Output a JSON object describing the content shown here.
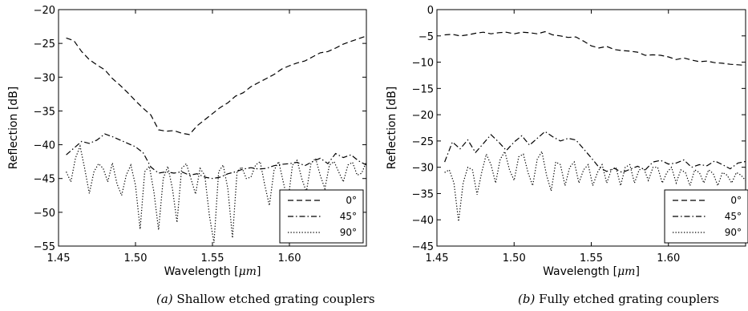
{
  "chart_data": [
    {
      "type": "line",
      "caption_prefix": "(a)",
      "caption_text": "Shallow etched grating couplers",
      "xlabel_prefix": "Wavelength [",
      "xlabel_unit": "μm",
      "xlabel_suffix": "]",
      "ylabel": "Reflection [dB]",
      "xlim": [
        1.45,
        1.65
      ],
      "ylim": [
        -55,
        -20
      ],
      "xticks": [
        "1.45",
        "1.50",
        "1.55",
        "1.60"
      ],
      "xtick_values": [
        1.45,
        1.5,
        1.55,
        1.6
      ],
      "yticks": [
        "−55",
        "−50",
        "−45",
        "−40",
        "−35",
        "−30",
        "−25",
        "−20"
      ],
      "ytick_values": [
        -55,
        -50,
        -45,
        -40,
        -35,
        -30,
        -25,
        -20
      ],
      "grid": false,
      "legend_position": "lower-right",
      "series": [
        {
          "name": "0°",
          "style": "dashed",
          "x": [
            1.455,
            1.46,
            1.465,
            1.47,
            1.475,
            1.48,
            1.485,
            1.49,
            1.495,
            1.5,
            1.505,
            1.51,
            1.515,
            1.52,
            1.525,
            1.53,
            1.535,
            1.54,
            1.545,
            1.55,
            1.555,
            1.56,
            1.565,
            1.57,
            1.575,
            1.58,
            1.585,
            1.59,
            1.595,
            1.6,
            1.605,
            1.61,
            1.615,
            1.62,
            1.625,
            1.63,
            1.635,
            1.64,
            1.645,
            1.65
          ],
          "y": [
            -24.2,
            -24.6,
            -26.2,
            -27.4,
            -28.2,
            -28.9,
            -30.2,
            -31.2,
            -32.3,
            -33.5,
            -34.6,
            -35.6,
            -37.8,
            -38.0,
            -37.9,
            -38.3,
            -38.5,
            -37.2,
            -36.3,
            -35.4,
            -34.5,
            -33.8,
            -32.8,
            -32.3,
            -31.4,
            -30.8,
            -30.2,
            -29.6,
            -28.8,
            -28.3,
            -27.9,
            -27.6,
            -27.0,
            -26.4,
            -26.2,
            -25.7,
            -25.1,
            -24.7,
            -24.3,
            -23.9
          ]
        },
        {
          "name": "45°",
          "style": "dashdot",
          "x": [
            1.455,
            1.46,
            1.465,
            1.47,
            1.475,
            1.48,
            1.485,
            1.49,
            1.495,
            1.5,
            1.505,
            1.51,
            1.515,
            1.52,
            1.525,
            1.53,
            1.535,
            1.54,
            1.545,
            1.55,
            1.555,
            1.56,
            1.565,
            1.57,
            1.575,
            1.58,
            1.585,
            1.59,
            1.595,
            1.6,
            1.605,
            1.61,
            1.615,
            1.62,
            1.625,
            1.63,
            1.635,
            1.64,
            1.645,
            1.65
          ],
          "y": [
            -41.5,
            -40.5,
            -39.5,
            -39.8,
            -39.3,
            -38.4,
            -38.8,
            -39.3,
            -39.8,
            -40.3,
            -41.2,
            -43.3,
            -44.2,
            -44.0,
            -44.2,
            -44.0,
            -44.5,
            -44.3,
            -44.8,
            -45.0,
            -44.8,
            -44.3,
            -44.0,
            -43.6,
            -43.4,
            -43.6,
            -43.5,
            -43.1,
            -42.9,
            -42.8,
            -42.6,
            -43.1,
            -42.5,
            -42.0,
            -42.8,
            -41.3,
            -41.9,
            -41.5,
            -42.4,
            -43.0
          ]
        },
        {
          "name": "90°",
          "style": "dotted",
          "x": [
            1.455,
            1.458,
            1.461,
            1.464,
            1.467,
            1.47,
            1.473,
            1.476,
            1.479,
            1.482,
            1.485,
            1.488,
            1.491,
            1.494,
            1.497,
            1.5,
            1.503,
            1.506,
            1.509,
            1.512,
            1.515,
            1.518,
            1.521,
            1.524,
            1.527,
            1.53,
            1.533,
            1.536,
            1.539,
            1.542,
            1.545,
            1.548,
            1.551,
            1.554,
            1.557,
            1.56,
            1.563,
            1.566,
            1.569,
            1.572,
            1.575,
            1.578,
            1.581,
            1.584,
            1.587,
            1.59,
            1.593,
            1.596,
            1.599,
            1.602,
            1.605,
            1.608,
            1.611,
            1.614,
            1.617,
            1.62,
            1.623,
            1.626,
            1.629,
            1.632,
            1.635,
            1.638,
            1.641,
            1.644,
            1.647,
            1.65
          ],
          "y": [
            -44.0,
            -45.5,
            -42.0,
            -40.2,
            -43.5,
            -47.2,
            -44.0,
            -42.8,
            -43.5,
            -45.5,
            -42.7,
            -45.8,
            -47.5,
            -44.5,
            -43.0,
            -46.0,
            -52.5,
            -44.0,
            -43.2,
            -47.0,
            -52.6,
            -45.0,
            -43.2,
            -46.5,
            -51.5,
            -43.5,
            -42.8,
            -45.0,
            -47.3,
            -43.5,
            -44.5,
            -50.5,
            -54.5,
            -44.0,
            -43.0,
            -46.5,
            -53.8,
            -44.0,
            -43.3,
            -45.0,
            -44.8,
            -43.0,
            -42.5,
            -46.0,
            -49.0,
            -43.8,
            -42.5,
            -45.5,
            -48.5,
            -43.0,
            -42.3,
            -45.0,
            -47.0,
            -42.8,
            -42.0,
            -44.5,
            -46.5,
            -43.0,
            -42.5,
            -44.0,
            -45.5,
            -43.0,
            -42.6,
            -44.5,
            -44.2,
            -42.5
          ]
        }
      ]
    },
    {
      "type": "line",
      "caption_prefix": "(b)",
      "caption_text": "Fully etched grating couplers",
      "xlabel_prefix": "Wavelength [",
      "xlabel_unit": "μm",
      "xlabel_suffix": "]",
      "ylabel": "Reflection [dB]",
      "xlim": [
        1.45,
        1.65
      ],
      "ylim": [
        -45,
        0
      ],
      "xticks": [
        "1.45",
        "1.50",
        "1.55",
        "1.60"
      ],
      "xtick_values": [
        1.45,
        1.5,
        1.55,
        1.6
      ],
      "yticks": [
        "−45",
        "−40",
        "−35",
        "−30",
        "−25",
        "−20",
        "−15",
        "−10",
        "−5",
        "0"
      ],
      "ytick_values": [
        -45,
        -40,
        -35,
        -30,
        -25,
        -20,
        -15,
        -10,
        -5,
        0
      ],
      "grid": false,
      "legend_position": "lower-right",
      "series": [
        {
          "name": "0°",
          "style": "dashed",
          "x": [
            1.455,
            1.46,
            1.465,
            1.47,
            1.475,
            1.48,
            1.485,
            1.49,
            1.495,
            1.5,
            1.505,
            1.51,
            1.515,
            1.52,
            1.525,
            1.53,
            1.535,
            1.54,
            1.545,
            1.55,
            1.555,
            1.56,
            1.565,
            1.57,
            1.575,
            1.58,
            1.585,
            1.59,
            1.595,
            1.6,
            1.605,
            1.61,
            1.615,
            1.62,
            1.625,
            1.63,
            1.635,
            1.64,
            1.645,
            1.65
          ],
          "y": [
            -4.8,
            -4.7,
            -5.0,
            -4.8,
            -4.5,
            -4.3,
            -4.6,
            -4.4,
            -4.3,
            -4.6,
            -4.3,
            -4.4,
            -4.6,
            -4.2,
            -4.8,
            -5.0,
            -5.3,
            -5.2,
            -6.0,
            -6.9,
            -7.3,
            -7.0,
            -7.6,
            -7.8,
            -7.9,
            -8.1,
            -8.7,
            -8.6,
            -8.7,
            -9.0,
            -9.5,
            -9.2,
            -9.6,
            -9.9,
            -9.8,
            -10.1,
            -10.2,
            -10.4,
            -10.5,
            -10.6
          ]
        },
        {
          "name": "45°",
          "style": "dashdot",
          "x": [
            1.455,
            1.46,
            1.465,
            1.47,
            1.475,
            1.48,
            1.485,
            1.49,
            1.495,
            1.5,
            1.505,
            1.51,
            1.515,
            1.52,
            1.525,
            1.53,
            1.535,
            1.54,
            1.545,
            1.55,
            1.555,
            1.56,
            1.565,
            1.57,
            1.575,
            1.58,
            1.585,
            1.59,
            1.595,
            1.6,
            1.605,
            1.61,
            1.615,
            1.62,
            1.625,
            1.63,
            1.635,
            1.64,
            1.645,
            1.65
          ],
          "y": [
            -29.0,
            -25.2,
            -26.5,
            -24.8,
            -27.2,
            -25.5,
            -23.8,
            -25.2,
            -26.8,
            -25.2,
            -24.0,
            -25.8,
            -24.5,
            -23.2,
            -24.2,
            -25.0,
            -24.5,
            -24.8,
            -26.5,
            -28.2,
            -30.0,
            -30.8,
            -30.2,
            -31.0,
            -30.4,
            -29.8,
            -30.5,
            -29.0,
            -28.7,
            -29.4,
            -29.2,
            -28.6,
            -30.0,
            -29.5,
            -29.7,
            -28.8,
            -29.5,
            -30.3,
            -29.2,
            -28.9
          ]
        },
        {
          "name": "90°",
          "style": "dotted",
          "x": [
            1.455,
            1.458,
            1.461,
            1.464,
            1.467,
            1.47,
            1.473,
            1.476,
            1.479,
            1.482,
            1.485,
            1.488,
            1.491,
            1.494,
            1.497,
            1.5,
            1.503,
            1.506,
            1.509,
            1.512,
            1.515,
            1.518,
            1.521,
            1.524,
            1.527,
            1.53,
            1.533,
            1.536,
            1.539,
            1.542,
            1.545,
            1.548,
            1.551,
            1.554,
            1.557,
            1.56,
            1.563,
            1.566,
            1.569,
            1.572,
            1.575,
            1.578,
            1.581,
            1.584,
            1.587,
            1.59,
            1.593,
            1.596,
            1.599,
            1.602,
            1.605,
            1.608,
            1.611,
            1.614,
            1.617,
            1.62,
            1.623,
            1.626,
            1.629,
            1.632,
            1.635,
            1.638,
            1.641,
            1.644,
            1.647,
            1.65
          ],
          "y": [
            -31.0,
            -30.5,
            -33.0,
            -40.3,
            -33.0,
            -30.0,
            -30.5,
            -35.2,
            -31.0,
            -27.5,
            -29.5,
            -33.0,
            -28.5,
            -27.0,
            -30.5,
            -32.5,
            -28.0,
            -27.5,
            -31.0,
            -33.5,
            -28.5,
            -27.0,
            -31.5,
            -34.5,
            -29.0,
            -29.5,
            -33.5,
            -30.0,
            -29.0,
            -33.0,
            -30.5,
            -29.5,
            -33.5,
            -31.0,
            -29.5,
            -33.0,
            -30.5,
            -30.0,
            -33.5,
            -30.0,
            -29.5,
            -33.0,
            -30.5,
            -30.2,
            -32.5,
            -30.0,
            -30.0,
            -33.0,
            -31.0,
            -30.0,
            -33.0,
            -30.5,
            -31.0,
            -33.5,
            -30.5,
            -31.0,
            -33.0,
            -30.5,
            -31.2,
            -33.5,
            -31.0,
            -31.5,
            -33.0,
            -31.0,
            -31.5,
            -32.5
          ]
        }
      ]
    }
  ]
}
